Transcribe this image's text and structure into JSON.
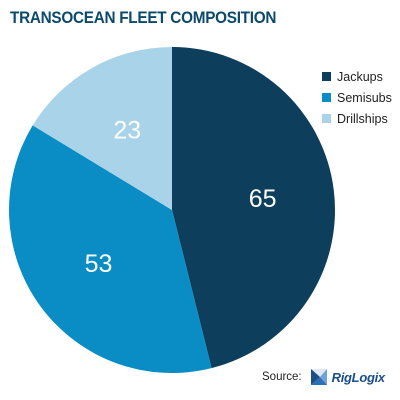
{
  "title": "TRANSOCEAN FLEET COMPOSITION",
  "chart_data": {
    "type": "pie",
    "title": "TRANSOCEAN FLEET COMPOSITION",
    "legend_position": "top-right",
    "start_angle_deg": 0,
    "direction": "clockwise",
    "slices": [
      {
        "label": "Jackups",
        "value": 65,
        "color": "#0d3e5c"
      },
      {
        "label": "Semisubs",
        "value": 53,
        "color": "#0a8cc4"
      },
      {
        "label": "Drillships",
        "value": 23,
        "color": "#a9d3e8"
      }
    ]
  },
  "source": {
    "label": "Source:",
    "logo_text": "RigLogix"
  }
}
